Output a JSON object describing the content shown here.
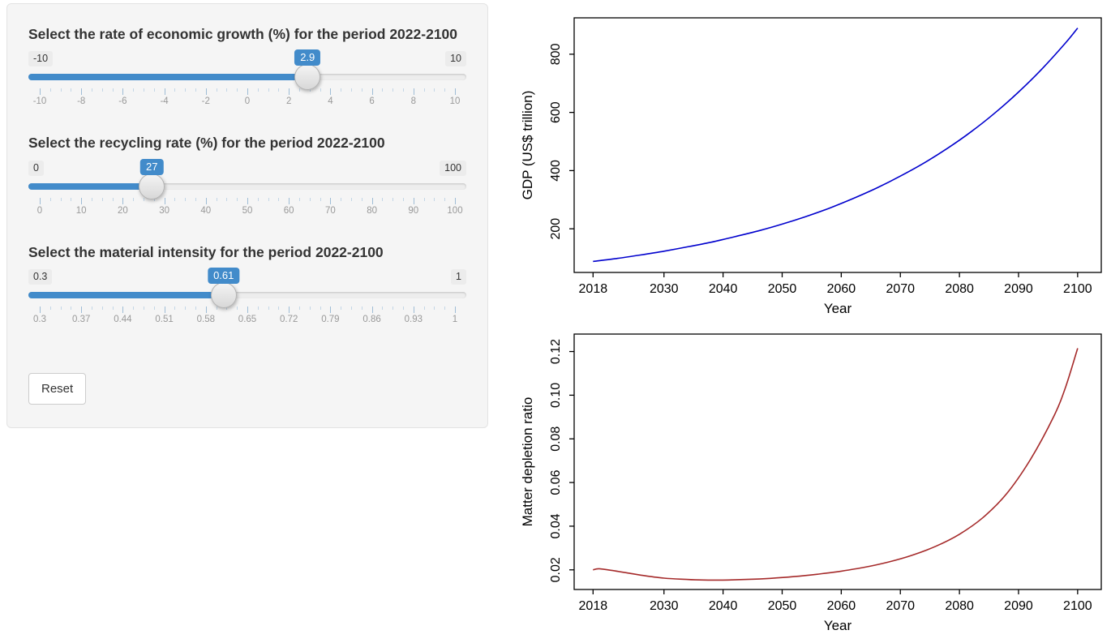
{
  "panel": {
    "accent_color": "#428bca",
    "sliders": [
      {
        "label": "Select the rate of economic growth (%) for the period 2022-2100",
        "min": -10,
        "max": 10,
        "value": 2.9,
        "min_label": "-10",
        "max_label": "10",
        "value_label": "2.9",
        "tick_labels": [
          "-10",
          "-8",
          "-6",
          "-4",
          "-2",
          "0",
          "2",
          "4",
          "6",
          "8",
          "10"
        ]
      },
      {
        "label": "Select the recycling rate (%) for the period 2022-2100",
        "min": 0,
        "max": 100,
        "value": 27,
        "min_label": "0",
        "max_label": "100",
        "value_label": "27",
        "tick_labels": [
          "0",
          "10",
          "20",
          "30",
          "40",
          "50",
          "60",
          "70",
          "80",
          "90",
          "100"
        ]
      },
      {
        "label": "Select the material intensity for the period 2022-2100",
        "min": 0.3,
        "max": 1,
        "value": 0.61,
        "min_label": "0.3",
        "max_label": "1",
        "value_label": "0.61",
        "tick_labels": [
          "0.3",
          "0.37",
          "0.44",
          "0.51",
          "0.58",
          "0.65",
          "0.72",
          "0.79",
          "0.86",
          "0.93",
          "1"
        ]
      }
    ],
    "reset_label": "Reset"
  },
  "chart_data": [
    {
      "type": "line",
      "title": "",
      "xlabel": "Year",
      "ylabel": "GDP (US$ trillion)",
      "x_ticks": [
        2018,
        2030,
        2040,
        2050,
        2060,
        2070,
        2080,
        2090,
        2100
      ],
      "x_tick_labels": [
        "2018",
        "2030",
        "2040",
        "2050",
        "2060",
        "2070",
        "2080",
        "2090",
        "2100"
      ],
      "y_ticks": [
        200,
        400,
        600,
        800
      ],
      "y_tick_labels": [
        "200",
        "400",
        "600",
        "800"
      ],
      "xlim": [
        2014.8,
        2104
      ],
      "ylim": [
        50,
        925
      ],
      "grid": false,
      "legend_position": "none",
      "line_color": "#0000cd",
      "series": [
        {
          "name": "GDP",
          "x": [
            2018,
            2022,
            2026,
            2030,
            2034,
            2038,
            2042,
            2046,
            2050,
            2054,
            2058,
            2062,
            2066,
            2070,
            2074,
            2078,
            2082,
            2086,
            2090,
            2094,
            2098,
            2100
          ],
          "y": [
            88,
            98,
            110,
            123,
            138,
            154,
            173,
            193,
            216,
            242,
            271,
            304,
            340,
            381,
            426,
            477,
            534,
            598,
            670,
            750,
            840,
            890
          ]
        }
      ]
    },
    {
      "type": "line",
      "title": "",
      "xlabel": "Year",
      "ylabel": "Matter depletion ratio",
      "x_ticks": [
        2018,
        2030,
        2040,
        2050,
        2060,
        2070,
        2080,
        2090,
        2100
      ],
      "x_tick_labels": [
        "2018",
        "2030",
        "2040",
        "2050",
        "2060",
        "2070",
        "2080",
        "2090",
        "2100"
      ],
      "y_ticks": [
        0.02,
        0.04,
        0.06,
        0.08,
        0.1,
        0.12
      ],
      "y_tick_labels": [
        "0.02",
        "0.04",
        "0.06",
        "0.08",
        "0.10",
        "0.12"
      ],
      "xlim": [
        2014.8,
        2104
      ],
      "ylim": [
        0.011,
        0.128
      ],
      "grid": false,
      "legend_position": "none",
      "line_color": "#a52a2a",
      "series": [
        {
          "name": "Matter depletion ratio",
          "x": [
            2018,
            2019,
            2021,
            2024,
            2027,
            2030,
            2033,
            2036,
            2040,
            2044,
            2048,
            2052,
            2056,
            2060,
            2064,
            2068,
            2072,
            2076,
            2080,
            2084,
            2088,
            2092,
            2096,
            2098,
            2100
          ],
          "y": [
            0.02,
            0.0205,
            0.0198,
            0.0185,
            0.0172,
            0.0162,
            0.0157,
            0.0154,
            0.0153,
            0.0156,
            0.0161,
            0.0169,
            0.018,
            0.0194,
            0.0212,
            0.0236,
            0.0267,
            0.0308,
            0.0363,
            0.044,
            0.0549,
            0.0705,
            0.0905,
            0.104,
            0.1215
          ]
        }
      ]
    }
  ]
}
